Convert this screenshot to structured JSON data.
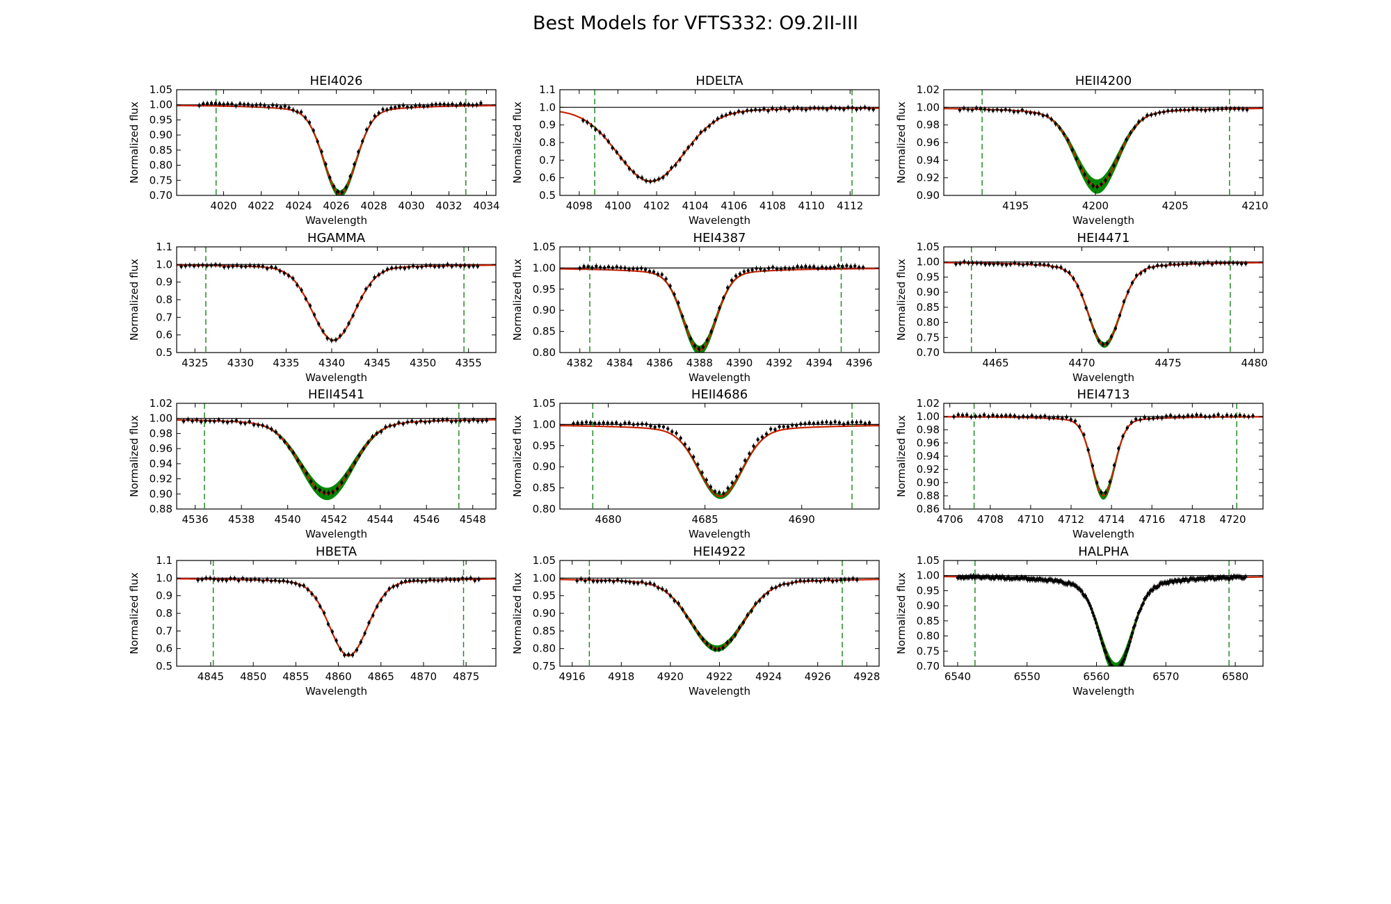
{
  "title": "Best Models for VFTS332: O9.2II-III",
  "colors": {
    "model": "#cc2200",
    "envelope": "#008800",
    "data": "#000000",
    "bounds": "#228b22",
    "continuum": "#000000"
  },
  "chart_data": [
    {
      "type": "line",
      "title": "HEI4026",
      "xlabel": "Wavelength",
      "ylabel": "Normalized flux",
      "xlim": [
        4017.5,
        4034.5
      ],
      "ylim": [
        0.7,
        1.05
      ],
      "xticks": [
        4020,
        4022,
        4024,
        4026,
        4028,
        4030,
        4032,
        4034
      ],
      "yticks": [
        0.7,
        0.75,
        0.8,
        0.85,
        0.9,
        0.95,
        1.0,
        1.05
      ],
      "bounds": [
        4019.6,
        4032.9
      ],
      "center": 4026.2,
      "depth": 0.265,
      "width": 0.85,
      "wings": 0.03,
      "band": 0.02,
      "data_range": [
        4018.7,
        4033.7
      ],
      "data_offset": 0.005
    },
    {
      "type": "line",
      "title": "HDELTA",
      "xlabel": "Wavelength",
      "ylabel": "Normalized flux",
      "xlim": [
        4097,
        4113.5
      ],
      "ylim": [
        0.5,
        1.1
      ],
      "xticks": [
        4098,
        4100,
        4102,
        4104,
        4106,
        4108,
        4110,
        4112
      ],
      "yticks": [
        0.5,
        0.6,
        0.7,
        0.8,
        0.9,
        1.0,
        1.1
      ],
      "bounds": [
        4098.8,
        4112.1
      ],
      "center": 4101.7,
      "depth": 0.39,
      "width": 1.7,
      "wings": 0.03,
      "band": 0.005,
      "data_range": [
        4098.2,
        4113.2
      ],
      "data_offset": 0.0
    },
    {
      "type": "line",
      "title": "HEII4200",
      "xlabel": "Wavelength",
      "ylabel": "Normalized flux",
      "xlim": [
        4190.5,
        4210.5
      ],
      "ylim": [
        0.9,
        1.02
      ],
      "xticks": [
        4195,
        4200,
        4205,
        4210
      ],
      "yticks": [
        0.9,
        0.92,
        0.94,
        0.96,
        0.98,
        1.0,
        1.02
      ],
      "bounds": [
        4192.9,
        4208.4
      ],
      "center": 4200.1,
      "depth": 0.08,
      "width": 1.3,
      "wings": 0.01,
      "band": 0.015,
      "data_range": [
        4191.5,
        4209.5
      ],
      "data_offset": 0.0
    },
    {
      "type": "line",
      "title": "HGAMMA",
      "xlabel": "Wavelength",
      "ylabel": "Normalized flux",
      "xlim": [
        4323,
        4358
      ],
      "ylim": [
        0.5,
        1.1
      ],
      "xticks": [
        4325,
        4330,
        4335,
        4340,
        4345,
        4350,
        4355
      ],
      "yticks": [
        0.5,
        0.6,
        0.7,
        0.8,
        0.9,
        1.0,
        1.1
      ],
      "bounds": [
        4326.2,
        4354.5
      ],
      "center": 4340.2,
      "depth": 0.4,
      "width": 2.3,
      "wings": 0.03,
      "band": 0.005,
      "data_range": [
        4323.5,
        4356
      ],
      "data_offset": 0.0
    },
    {
      "type": "line",
      "title": "HEI4387",
      "xlabel": "Wavelength",
      "ylabel": "Normalized flux",
      "xlim": [
        4381,
        4397
      ],
      "ylim": [
        0.8,
        1.05
      ],
      "xticks": [
        4382,
        4384,
        4386,
        4388,
        4390,
        4392,
        4394,
        4396
      ],
      "yticks": [
        0.8,
        0.85,
        0.9,
        0.95,
        1.0,
        1.05
      ],
      "bounds": [
        4382.5,
        4395.1
      ],
      "center": 4388.0,
      "depth": 0.175,
      "width": 0.8,
      "wings": 0.02,
      "band": 0.02,
      "data_range": [
        4382,
        4396.2
      ],
      "data_offset": 0.005
    },
    {
      "type": "line",
      "title": "HEI4471",
      "xlabel": "Wavelength",
      "ylabel": "Normalized flux",
      "xlim": [
        4462,
        4480.5
      ],
      "ylim": [
        0.7,
        1.05
      ],
      "xticks": [
        4465,
        4470,
        4475,
        4480
      ],
      "yticks": [
        0.7,
        0.75,
        0.8,
        0.85,
        0.9,
        0.95,
        1.0,
        1.05
      ],
      "bounds": [
        4463.6,
        4478.6
      ],
      "center": 4471.3,
      "depth": 0.245,
      "width": 0.9,
      "wings": 0.03,
      "band": 0.015,
      "data_range": [
        4462.7,
        4479.5
      ],
      "data_offset": 0.0
    },
    {
      "type": "line",
      "title": "HEII4541",
      "xlabel": "Wavelength",
      "ylabel": "Normalized flux",
      "xlim": [
        4535.2,
        4549
      ],
      "ylim": [
        0.88,
        1.02
      ],
      "xticks": [
        4536,
        4538,
        4540,
        4542,
        4544,
        4546,
        4548
      ],
      "yticks": [
        0.88,
        0.9,
        0.92,
        0.94,
        0.96,
        0.98,
        1.0,
        1.02
      ],
      "bounds": [
        4536.4,
        4547.4
      ],
      "center": 4541.7,
      "depth": 0.09,
      "width": 1.1,
      "wings": 0.01,
      "band": 0.015,
      "data_range": [
        4535.5,
        4548.6
      ],
      "data_offset": 0.0
    },
    {
      "type": "line",
      "title": "HEII4686",
      "xlabel": "Wavelength",
      "ylabel": "Normalized flux",
      "xlim": [
        4677.5,
        4694
      ],
      "ylim": [
        0.8,
        1.05
      ],
      "xticks": [
        4680,
        4685,
        4690
      ],
      "yticks": [
        0.8,
        0.85,
        0.9,
        0.95,
        1.0,
        1.05
      ],
      "bounds": [
        4679.2,
        4692.6
      ],
      "center": 4685.8,
      "depth": 0.15,
      "width": 1.1,
      "wings": 0.02,
      "band": 0.01,
      "data_range": [
        4678.2,
        4693.5
      ],
      "data_offset": 0.008
    },
    {
      "type": "line",
      "title": "HEI4713",
      "xlabel": "Wavelength",
      "ylabel": "Normalized flux",
      "xlim": [
        4705.7,
        4721.5
      ],
      "ylim": [
        0.86,
        1.02
      ],
      "xticks": [
        4706,
        4708,
        4710,
        4712,
        4714,
        4716,
        4718,
        4720
      ],
      "yticks": [
        0.86,
        0.88,
        0.9,
        0.92,
        0.94,
        0.96,
        0.98,
        1.0,
        1.02
      ],
      "bounds": [
        4707.2,
        4720.2
      ],
      "center": 4713.6,
      "depth": 0.11,
      "width": 0.55,
      "wings": 0.01,
      "band": 0.01,
      "data_range": [
        4706.2,
        4721
      ],
      "data_offset": 0.002
    },
    {
      "type": "line",
      "title": "HBETA",
      "xlabel": "Wavelength",
      "ylabel": "Normalized flux",
      "xlim": [
        4841,
        4878.5
      ],
      "ylim": [
        0.5,
        1.1
      ],
      "xticks": [
        4845,
        4850,
        4855,
        4860,
        4865,
        4870,
        4875
      ],
      "yticks": [
        0.5,
        0.6,
        0.7,
        0.8,
        0.9,
        1.0,
        1.1
      ],
      "bounds": [
        4845.3,
        4874.7
      ],
      "center": 4861.2,
      "depth": 0.4,
      "width": 2.2,
      "wings": 0.04,
      "band": 0.005,
      "data_range": [
        4843.5,
        4876.5
      ],
      "data_offset": 0.0
    },
    {
      "type": "line",
      "title": "HEI4922",
      "xlabel": "Wavelength",
      "ylabel": "Normalized flux",
      "xlim": [
        4915.5,
        4928.5
      ],
      "ylim": [
        0.75,
        1.05
      ],
      "xticks": [
        4916,
        4918,
        4920,
        4922,
        4924,
        4926,
        4928
      ],
      "yticks": [
        0.75,
        0.8,
        0.85,
        0.9,
        0.95,
        1.0,
        1.05
      ],
      "bounds": [
        4916.7,
        4927.0
      ],
      "center": 4921.9,
      "depth": 0.18,
      "width": 1.05,
      "wings": 0.02,
      "band": 0.015,
      "data_range": [
        4916.2,
        4927.6
      ],
      "data_offset": 0.0
    },
    {
      "type": "line",
      "title": "HALPHA",
      "xlabel": "Wavelength",
      "ylabel": "Normalized flux",
      "xlim": [
        6538,
        6584
      ],
      "ylim": [
        0.7,
        1.05
      ],
      "xticks": [
        6540,
        6550,
        6560,
        6570,
        6580
      ],
      "yticks": [
        0.7,
        0.75,
        0.8,
        0.85,
        0.9,
        0.95,
        1.0,
        1.05
      ],
      "bounds": [
        6542.5,
        6579.1
      ],
      "center": 6562.8,
      "depth": 0.26,
      "width": 2.2,
      "wings": 0.05,
      "band": 0.04,
      "data_range": [
        6540,
        6581.5
      ],
      "data_offset": 0.0
    }
  ]
}
